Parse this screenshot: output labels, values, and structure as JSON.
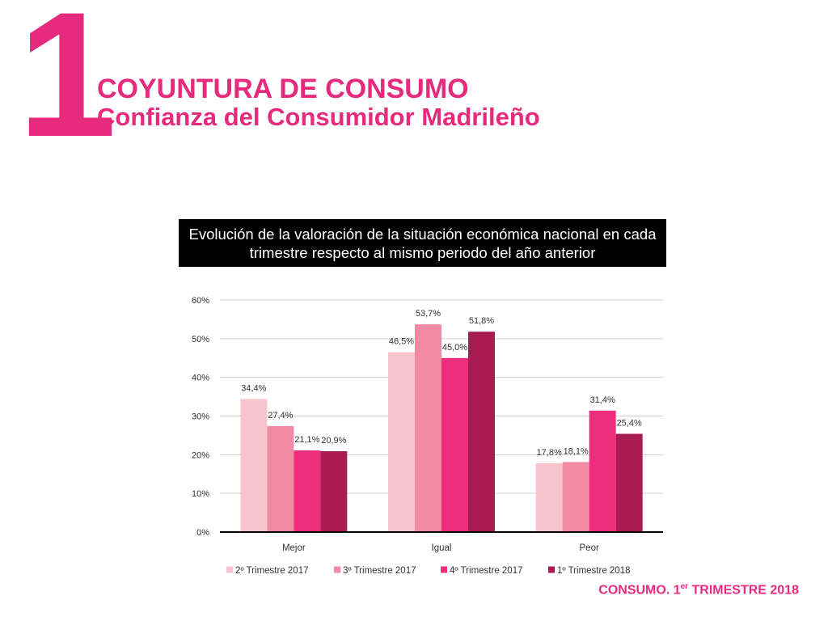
{
  "header": {
    "number": "1",
    "title": "COYUNTURA DE CONSUMO",
    "subtitle": "Confianza del Consumidor Madrileño"
  },
  "chart_title": "Evolución de la valoración de la situación económica nacional en cada trimestre respecto al mismo periodo del año anterior",
  "footer": {
    "prefix": "CONSUMO. 1",
    "sup": "er",
    "suffix": " TRIMESTRE 2018"
  },
  "colors": {
    "accent": "#e62a7e",
    "series": [
      "#f7c3ce",
      "#f38aa3",
      "#ee2d7c",
      "#a91c53"
    ]
  },
  "chart_data": {
    "type": "bar",
    "categories": [
      "Mejor",
      "Igual",
      "Peor"
    ],
    "series": [
      {
        "name": "2º Trimestre 2017",
        "values": [
          34.4,
          46.5,
          17.8
        ],
        "labels": [
          "34,4%",
          "46,5%",
          "17,8%"
        ]
      },
      {
        "name": "3º Trimestre 2017",
        "values": [
          27.4,
          53.7,
          18.1
        ],
        "labels": [
          "27,4%",
          "53,7%",
          "18,1%"
        ]
      },
      {
        "name": "4º Trimestre 2017",
        "values": [
          21.1,
          45.0,
          31.4
        ],
        "labels": [
          "21,1%",
          "45,0%",
          "31,4%"
        ]
      },
      {
        "name": "1º Trimestre 2018",
        "values": [
          20.9,
          51.8,
          25.4
        ],
        "labels": [
          "20,9%",
          "51,8%",
          "25,4%"
        ]
      }
    ],
    "ylim": [
      0,
      60
    ],
    "yticks": [
      "0%",
      "10%",
      "20%",
      "30%",
      "40%",
      "50%",
      "60%"
    ],
    "grid": true,
    "legend": "bottom"
  }
}
